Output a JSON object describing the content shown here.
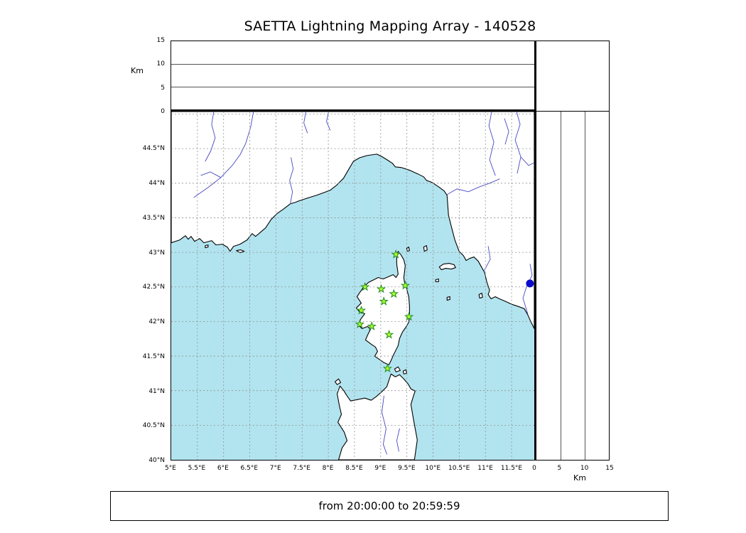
{
  "title": "SAETTA Lightning Mapping Array - 140528",
  "footer": {
    "time_range": "from 20:00:00 to 20:59:59"
  },
  "colors": {
    "sea": "#b2e4ef",
    "land": "#ffffff",
    "coast": "#000000",
    "river": "#4747c2",
    "grid": "#8f8f8f",
    "panel_line": "#555555",
    "station_fill": "#adff2f",
    "station_edge": "#1f8b1f",
    "source_dot": "#0b0bcd"
  },
  "altitude_panel": {
    "axis_label": "Km",
    "range_km": [
      0,
      15
    ],
    "ticks": [
      {
        "value": 0,
        "label": "0"
      },
      {
        "value": 5,
        "label": "5"
      },
      {
        "value": 10,
        "label": "10"
      },
      {
        "value": 15,
        "label": "15"
      }
    ]
  },
  "right_panel": {
    "axis_label": "Km",
    "range_km": [
      0,
      15
    ],
    "ticks": [
      {
        "value": 0,
        "label": "0"
      },
      {
        "value": 5,
        "label": "5"
      },
      {
        "value": 10,
        "label": "10"
      },
      {
        "value": 15,
        "label": "15"
      }
    ]
  },
  "map": {
    "lat_ticks": [
      {
        "value": 44.5,
        "label": "44.5°N"
      },
      {
        "value": 44,
        "label": "44°N"
      },
      {
        "value": 43.5,
        "label": "43.5°N"
      },
      {
        "value": 43,
        "label": "43°N"
      },
      {
        "value": 42.5,
        "label": "42.5°N"
      },
      {
        "value": 42,
        "label": "42°N"
      },
      {
        "value": 41.5,
        "label": "41.5°N"
      },
      {
        "value": 41,
        "label": "41°N"
      },
      {
        "value": 40.5,
        "label": "40.5°N"
      },
      {
        "value": 40,
        "label": "40°N"
      }
    ],
    "lon_ticks": [
      {
        "value": 5,
        "label": "5°E"
      },
      {
        "value": 5.5,
        "label": "5.5°E"
      },
      {
        "value": 6,
        "label": "6°E"
      },
      {
        "value": 6.5,
        "label": "6.5°E"
      },
      {
        "value": 7,
        "label": "7°E"
      },
      {
        "value": 7.5,
        "label": "7.5°E"
      },
      {
        "value": 8,
        "label": "8°E"
      },
      {
        "value": 8.5,
        "label": "8.5°E"
      },
      {
        "value": 9,
        "label": "9°E"
      },
      {
        "value": 9.5,
        "label": "9.5°E"
      },
      {
        "value": 10,
        "label": "10°E"
      },
      {
        "value": 10.5,
        "label": "10.5°E"
      },
      {
        "value": 11,
        "label": "11°E"
      },
      {
        "value": 11.5,
        "label": "11.5°E"
      }
    ]
  },
  "chart_data": {
    "type": "scatter",
    "title": "SAETTA Lightning Mapping Array - 140528",
    "time_window": "from 20:00:00 to 20:59:59",
    "map_extent": {
      "lon_min": 5,
      "lon_max": 11.93,
      "lat_min": 40,
      "lat_max": 45.04
    },
    "altitude_range_km": [
      0,
      15
    ],
    "legend": "green stars = LMA station sites on Corsica; blue dot = marker near Italian coast; altitude panels (top: km vs longitude, right: km vs latitude) are empty for this hour",
    "stations": [
      {
        "lon": 9.29,
        "lat": 42.97
      },
      {
        "lon": 8.7,
        "lat": 42.5
      },
      {
        "lon": 9.01,
        "lat": 42.47
      },
      {
        "lon": 9.47,
        "lat": 42.52
      },
      {
        "lon": 9.25,
        "lat": 42.4
      },
      {
        "lon": 9.06,
        "lat": 42.29
      },
      {
        "lon": 8.63,
        "lat": 42.16
      },
      {
        "lon": 9.54,
        "lat": 42.07
      },
      {
        "lon": 8.6,
        "lat": 41.96
      },
      {
        "lon": 8.83,
        "lat": 41.93
      },
      {
        "lon": 9.16,
        "lat": 41.81
      },
      {
        "lon": 9.13,
        "lat": 41.32
      }
    ],
    "source_marker": {
      "lon": 11.85,
      "lat": 42.55
    }
  }
}
